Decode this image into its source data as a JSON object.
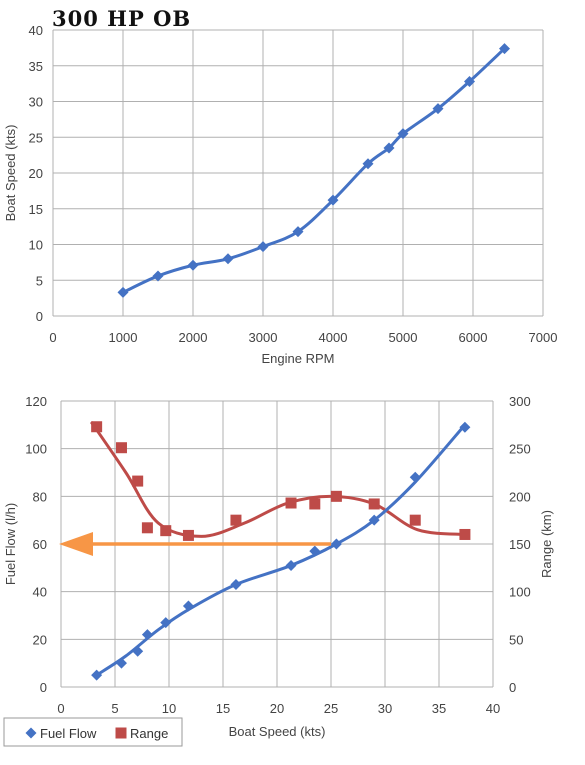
{
  "title": "300 HP OB",
  "colors": {
    "blue": "#4472c4",
    "red": "#be4b48",
    "orange": "#f79646",
    "grid": "#b0b0b0"
  },
  "chart_data": [
    {
      "type": "line",
      "xlabel": "Engine RPM",
      "ylabel": "Boat Speed (kts)",
      "xlim": [
        0,
        7000
      ],
      "ylim": [
        0,
        40
      ],
      "xticks": [
        0,
        1000,
        2000,
        3000,
        4000,
        5000,
        6000,
        7000
      ],
      "yticks": [
        0,
        5,
        10,
        15,
        20,
        25,
        30,
        35,
        40
      ],
      "grid": true,
      "series": [
        {
          "name": "",
          "marker": "diamond",
          "x": [
            1000,
            1500,
            2000,
            2500,
            3000,
            3500,
            4000,
            4500,
            4800,
            5000,
            5500,
            5950,
            6450
          ],
          "y": [
            3.3,
            5.6,
            7.1,
            8.0,
            9.7,
            11.8,
            16.2,
            21.3,
            23.5,
            25.5,
            29.0,
            32.8,
            37.4
          ]
        }
      ]
    },
    {
      "type": "scatter",
      "xlabel": "Boat Speed (kts)",
      "ylabel": "Fuel Flow (l/h)",
      "y2label": "Range (km)",
      "xlim": [
        0,
        40
      ],
      "ylim": [
        0,
        120
      ],
      "y2lim": [
        0,
        300
      ],
      "xticks": [
        0,
        5,
        10,
        15,
        20,
        25,
        30,
        35,
        40
      ],
      "yticks": [
        0,
        20,
        40,
        60,
        80,
        100,
        120
      ],
      "y2ticks": [
        0,
        50,
        100,
        150,
        200,
        250,
        300
      ],
      "grid": true,
      "legend_position": "bottom-left",
      "series": [
        {
          "name": "Fuel Flow",
          "marker": "diamond",
          "axis": "left",
          "x": [
            3.3,
            5.6,
            7.1,
            8.0,
            9.7,
            11.8,
            16.2,
            21.3,
            23.5,
            25.5,
            29.0,
            32.8,
            37.4
          ],
          "y": [
            5.0,
            10.0,
            15.0,
            22.0,
            27.0,
            34.0,
            43.0,
            51.0,
            57.0,
            60.0,
            70.0,
            88.0,
            109.0
          ]
        },
        {
          "name": "Range",
          "marker": "square",
          "axis": "right",
          "x": [
            3.3,
            5.6,
            7.1,
            8.0,
            9.7,
            11.8,
            16.2,
            21.3,
            23.5,
            25.5,
            29.0,
            32.8,
            37.4
          ],
          "y": [
            273,
            251,
            216,
            167,
            164,
            159,
            175,
            193,
            192,
            200,
            192,
            175,
            160
          ]
        }
      ],
      "annotation": {
        "type": "arrow",
        "from": [
          25.0,
          60
        ],
        "to": [
          0,
          60
        ]
      }
    }
  ]
}
